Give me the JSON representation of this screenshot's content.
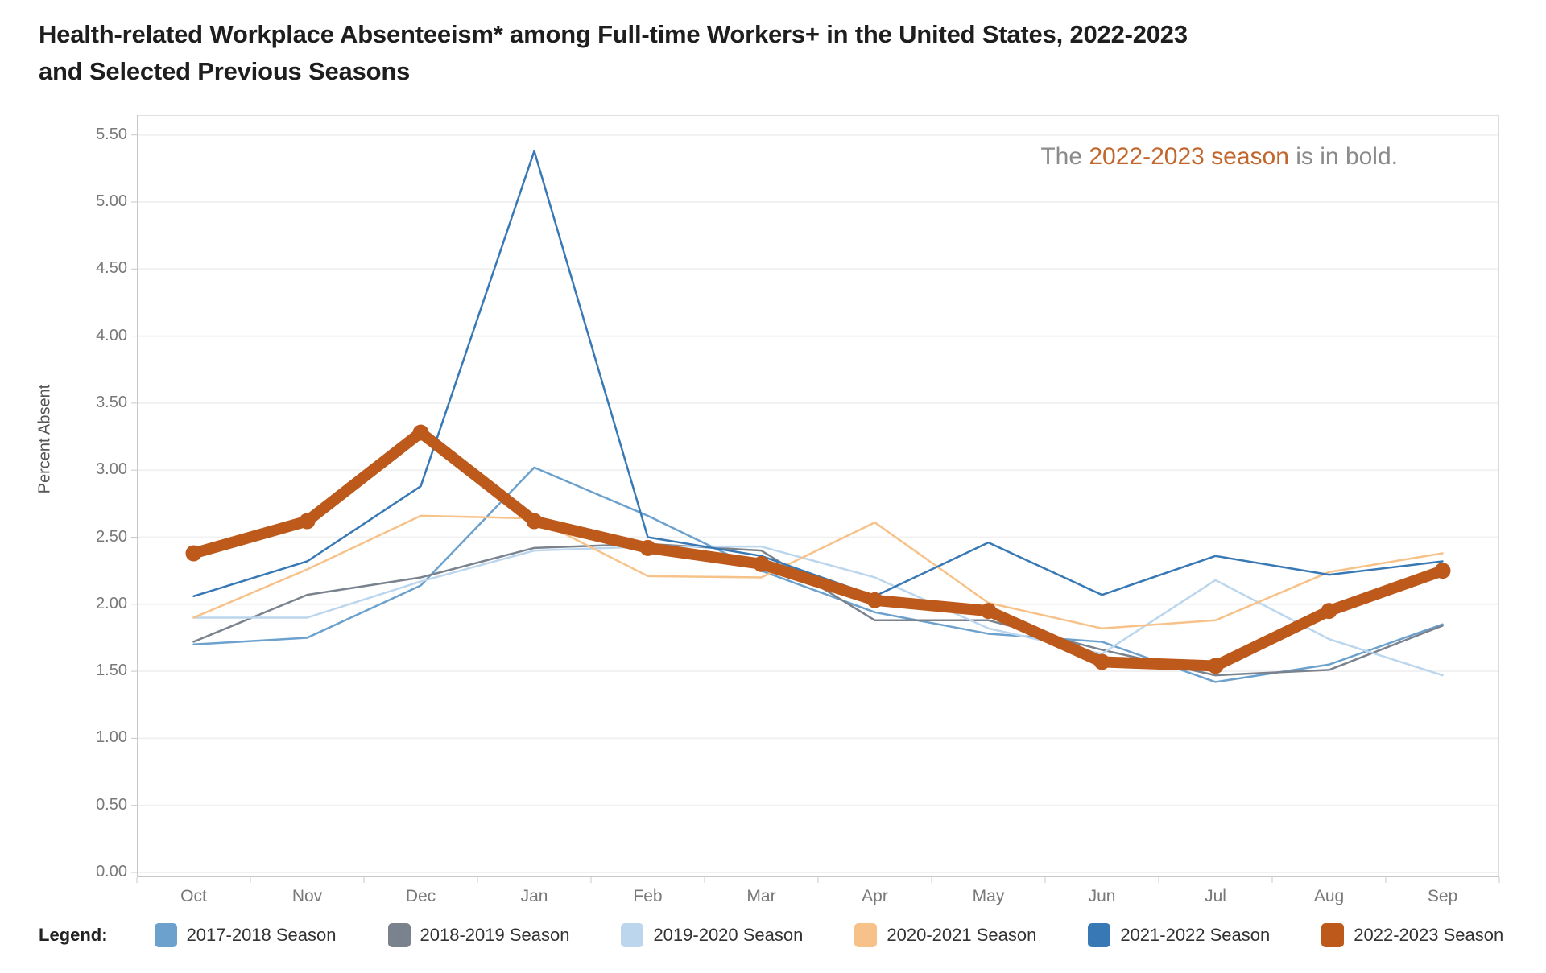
{
  "title": {
    "lines": [
      "Health-related Workplace Absenteeism* among Full-time Workers+ in the United States, 2022-2023",
      "and Selected Previous Seasons"
    ]
  },
  "annotation": {
    "prefix": "The ",
    "highlight": "2022-2023 season",
    "suffix": " is in bold.",
    "highlight_color": "#C1672E",
    "text_color": "#8B8B8B"
  },
  "legend": {
    "label": "Legend:"
  },
  "chart_data": {
    "type": "line",
    "title": "Health-related Workplace Absenteeism* among Full-time Workers+ in the United States, 2022-2023 and Selected Previous Seasons",
    "xlabel": "",
    "ylabel": "Percent Absent",
    "ylim": [
      0,
      5.5
    ],
    "ytick_step": 0.5,
    "y_tick_labels": [
      "0.00",
      "0.50",
      "1.00",
      "1.50",
      "2.00",
      "2.50",
      "3.00",
      "3.50",
      "4.00",
      "4.50",
      "5.00",
      "5.50"
    ],
    "grid": true,
    "legend_position": "bottom",
    "categories": [
      "Oct",
      "Nov",
      "Dec",
      "Jan",
      "Feb",
      "Mar",
      "Apr",
      "May",
      "Jun",
      "Jul",
      "Aug",
      "Sep"
    ],
    "series": [
      {
        "name": "2017-2018 Season",
        "color": "#6CA1CD",
        "bold": false,
        "values": [
          1.7,
          1.75,
          2.14,
          3.02,
          2.66,
          2.25,
          1.94,
          1.78,
          1.72,
          1.42,
          1.55,
          1.85
        ]
      },
      {
        "name": "2018-2019 Season",
        "color": "#7A828E",
        "bold": false,
        "values": [
          1.72,
          2.07,
          2.2,
          2.42,
          2.45,
          2.4,
          1.88,
          1.88,
          1.66,
          1.47,
          1.51,
          1.84
        ]
      },
      {
        "name": "2019-2020 Season",
        "color": "#BCD6ED",
        "bold": false,
        "values": [
          1.9,
          1.9,
          2.17,
          2.4,
          2.43,
          2.43,
          2.2,
          1.82,
          1.63,
          2.18,
          1.74,
          1.47
        ]
      },
      {
        "name": "2020-2021 Season",
        "color": "#F7C289",
        "bold": false,
        "values": [
          1.9,
          2.26,
          2.66,
          2.64,
          2.21,
          2.2,
          2.61,
          2.01,
          1.82,
          1.88,
          2.24,
          2.38
        ]
      },
      {
        "name": "2021-2022 Season",
        "color": "#3878B4",
        "bold": false,
        "values": [
          2.06,
          2.32,
          2.88,
          5.38,
          2.5,
          2.36,
          2.06,
          2.46,
          2.07,
          2.36,
          2.22,
          2.32
        ]
      },
      {
        "name": "2022-2023 Season",
        "color": "#BC591B",
        "bold": true,
        "values": [
          2.38,
          2.62,
          3.28,
          2.62,
          2.42,
          2.3,
          2.03,
          1.95,
          1.57,
          1.54,
          1.95,
          2.25
        ]
      }
    ]
  }
}
